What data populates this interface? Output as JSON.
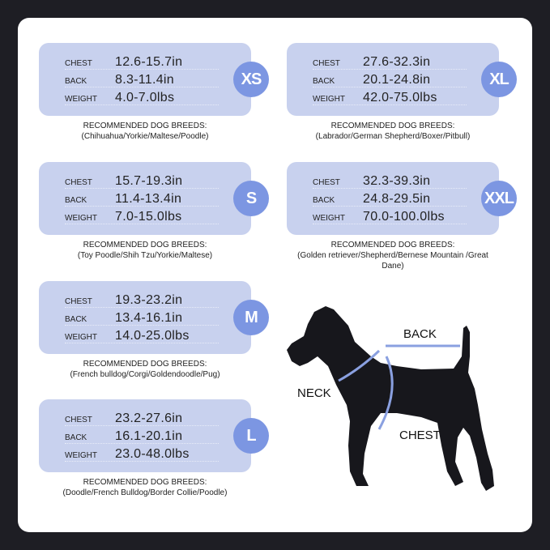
{
  "labels": {
    "chest": "CHEST",
    "back": "BACK",
    "weight": "WEIGHT",
    "breeds_heading": "RECOMMENDED DOG BREEDS:"
  },
  "sizes": [
    {
      "size": "XS",
      "chest": "12.6-15.7in",
      "back": "8.3-11.4in",
      "weight": "4.0-7.0lbs",
      "breeds": "(Chihuahua/Yorkie/Maltese/Poodle)"
    },
    {
      "size": "S",
      "chest": "15.7-19.3in",
      "back": "11.4-13.4in",
      "weight": "7.0-15.0lbs",
      "breeds": "(Toy Poodle/Shih Tzu/Yorkie/Maltese)"
    },
    {
      "size": "M",
      "chest": "19.3-23.2in",
      "back": "13.4-16.1in",
      "weight": "14.0-25.0lbs",
      "breeds": "(French bulldog/Corgi/Goldendoodle/Pug)"
    },
    {
      "size": "L",
      "chest": "23.2-27.6in",
      "back": "16.1-20.1in",
      "weight": "23.0-48.0lbs",
      "breeds": "(Doodle/French Bulldog/Border Collie/Poodle)"
    },
    {
      "size": "XL",
      "chest": "27.6-32.3in",
      "back": "20.1-24.8in",
      "weight": "42.0-75.0lbs",
      "breeds": "(Labrador/German Shepherd/Boxer/Pitbull)"
    },
    {
      "size": "XXL",
      "chest": "32.3-39.3in",
      "back": "24.8-29.5in",
      "weight": "70.0-100.0lbs",
      "breeds": "(Golden retriever/Shepherd/Bernese Mountain /Great Dane)"
    }
  ],
  "diagram": {
    "back": "BACK",
    "neck": "NECK",
    "chest": "CHEST"
  },
  "colors": {
    "card": "#c8d1ee",
    "badge": "#7c96e2",
    "measure_line": "#8aa0e0"
  }
}
